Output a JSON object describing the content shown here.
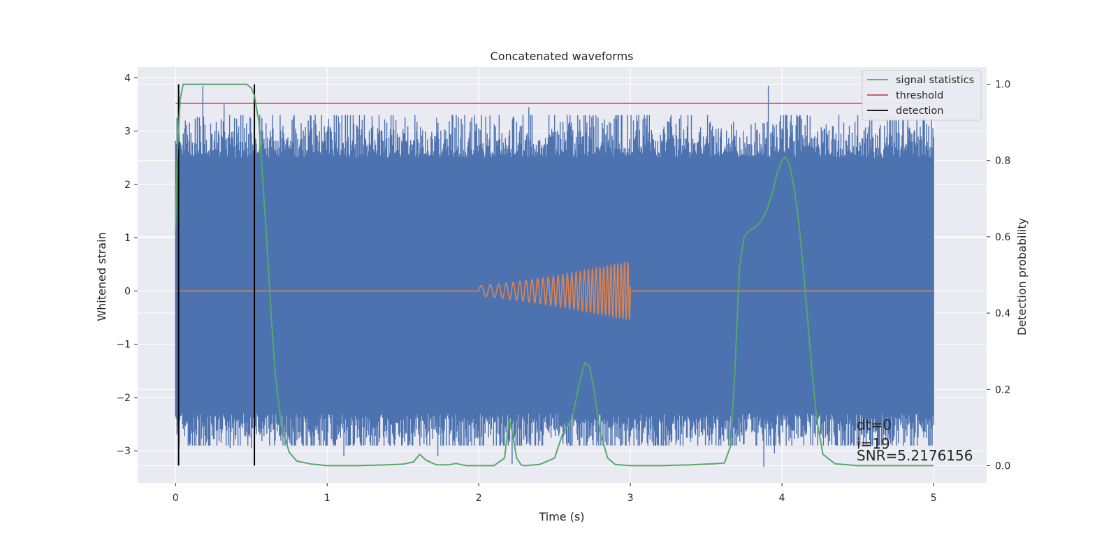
{
  "chart_data": {
    "type": "line",
    "title": "Concatenated waveforms",
    "xlabel": "Time (s)",
    "ylabel": "Whitened strain",
    "ylabel_right": "Detection probability",
    "xlim": [
      -0.25,
      5.35
    ],
    "ylim": [
      -3.6,
      4.2
    ],
    "ylim_right": [
      -0.045,
      1.045
    ],
    "x_ticks": [
      0,
      1,
      2,
      3,
      4,
      5
    ],
    "y_ticks": [
      -3,
      -2,
      -1,
      0,
      1,
      2,
      3,
      4
    ],
    "y_ticks_right": [
      0.0,
      0.2,
      0.4,
      0.6,
      0.8,
      1.0
    ],
    "x_tick_labels": [
      "0",
      "1",
      "2",
      "3",
      "4",
      "5"
    ],
    "y_tick_labels": [
      "−3",
      "−2",
      "−1",
      "0",
      "1",
      "2",
      "3",
      "4"
    ],
    "y_tick_labels_right": [
      "0.0",
      "0.2",
      "0.4",
      "0.6",
      "0.8",
      "1.0"
    ],
    "grid": true,
    "legend_position": "top-right",
    "colors": {
      "noise": "#4c72b0",
      "injection": "#dd8452",
      "signal_statistics": "#55a868",
      "threshold": "#c44e52",
      "detection": "#000000",
      "background": "#eaeaf2",
      "grid": "#ffffff"
    },
    "series": [
      {
        "name": "signal statistics",
        "axis": "right",
        "x": [
          0,
          0.01,
          0.03,
          0.05,
          0.08,
          0.12,
          0.2,
          0.3,
          0.4,
          0.47,
          0.5,
          0.52,
          0.55,
          0.57,
          0.6,
          0.63,
          0.66,
          0.7,
          0.75,
          0.8,
          0.9,
          1.0,
          1.2,
          1.4,
          1.5,
          1.57,
          1.61,
          1.65,
          1.72,
          1.8,
          1.85,
          1.88,
          1.92,
          2.0,
          2.1,
          2.17,
          2.2,
          2.22,
          2.25,
          2.28,
          2.3,
          2.4,
          2.5,
          2.55,
          2.58,
          2.62,
          2.66,
          2.7,
          2.73,
          2.76,
          2.8,
          2.85,
          2.9,
          3.0,
          3.2,
          3.4,
          3.55,
          3.62,
          3.66,
          3.69,
          3.72,
          3.75,
          3.78,
          3.82,
          3.86,
          3.9,
          3.94,
          3.97,
          4.0,
          4.02,
          4.05,
          4.08,
          4.11,
          4.14,
          4.17,
          4.2,
          4.23,
          4.27,
          4.35,
          4.5,
          4.8,
          5.0
        ],
        "values": [
          0.62,
          0.8,
          0.96,
          1.0,
          1.0,
          1.0,
          1.0,
          1.0,
          1.0,
          1.0,
          0.99,
          0.97,
          0.9,
          0.78,
          0.6,
          0.4,
          0.23,
          0.1,
          0.035,
          0.012,
          0.004,
          0.0,
          0.0,
          0.002,
          0.004,
          0.01,
          0.03,
          0.015,
          0.002,
          0.002,
          0.006,
          0.003,
          0.0,
          0.0,
          0.0,
          0.02,
          0.12,
          0.09,
          0.02,
          0.002,
          0.0,
          0.003,
          0.02,
          0.08,
          0.1,
          0.13,
          0.21,
          0.27,
          0.26,
          0.2,
          0.09,
          0.02,
          0.003,
          0.0,
          0.0,
          0.002,
          0.005,
          0.007,
          0.05,
          0.25,
          0.52,
          0.6,
          0.615,
          0.625,
          0.64,
          0.67,
          0.72,
          0.77,
          0.8,
          0.81,
          0.79,
          0.73,
          0.64,
          0.52,
          0.38,
          0.24,
          0.12,
          0.03,
          0.005,
          0.0,
          0.0,
          0.0
        ]
      },
      {
        "name": "threshold",
        "axis": "right",
        "x": [
          0,
          5.0
        ],
        "values": [
          0.95,
          0.95
        ]
      },
      {
        "name": "detection",
        "axis": "right",
        "x_positions": [
          0.02,
          0.52
        ],
        "range": [
          0.0,
          1.0
        ]
      },
      {
        "name": "",
        "role": "whitened strain noise",
        "axis": "left",
        "x_range": [
          0,
          5.0
        ],
        "envelope": [
          -2.3,
          2.5
        ],
        "peaks": [
          [
            0.18,
            3.85
          ],
          [
            0.32,
            3.5
          ],
          [
            1.0,
            3.0
          ],
          [
            1.59,
            3.0
          ],
          [
            2.0,
            3.05
          ],
          [
            2.33,
            3.45
          ],
          [
            2.6,
            3.0
          ],
          [
            2.82,
            3.05
          ],
          [
            3.02,
            3.2
          ],
          [
            3.58,
            3.05
          ],
          [
            3.6,
            3.05
          ],
          [
            3.91,
            3.85
          ],
          [
            4.83,
            3.35
          ],
          [
            4.89,
            3.3
          ],
          [
            1.11,
            -3.1
          ],
          [
            2.22,
            -3.25
          ],
          [
            3.88,
            -3.3
          ],
          [
            3.95,
            -3.05
          ],
          [
            0.36,
            -2.95
          ],
          [
            4.27,
            -2.75
          ],
          [
            1.73,
            -3.1
          ],
          [
            0.5,
            -2.95
          ]
        ]
      },
      {
        "name": "",
        "role": "injected chirp",
        "axis": "left",
        "x_range": [
          0,
          5.0
        ],
        "chirp_start": 2.0,
        "chirp_end": 3.0,
        "amplitude_start": 0.1,
        "amplitude_end": 0.55
      }
    ],
    "legend": [
      "signal statistics",
      "threshold",
      "detection"
    ],
    "annotations": [
      "dt=0",
      "i=19",
      "SNR=5.2176156"
    ]
  }
}
